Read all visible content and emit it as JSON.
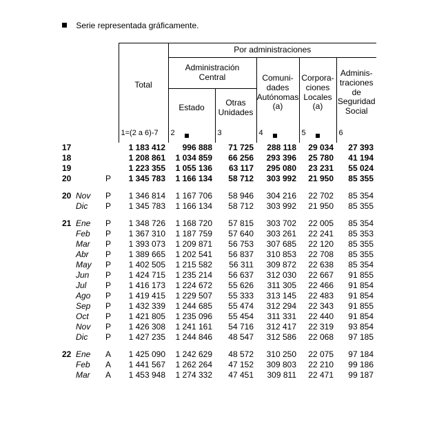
{
  "legend": "Serie representada gráficamente.",
  "header": {
    "total": "Total",
    "por_admin": "Por administraciones",
    "admin_central": "Administración\nCentral",
    "comunidades": "Comuni-\ndades\nAutónomas\n(a)",
    "corporaciones": "Corpora-\nciones\nLocales\n(a)",
    "seguridad": "Adminis-\ntraciones\nde\nSeguridad\nSocial",
    "estado": "Estado",
    "otras": "Otras\nUnidades"
  },
  "col_labels": [
    "1=(2 a 6)-7",
    "2",
    "3",
    "4",
    "5",
    "6"
  ],
  "col_markers": [
    false,
    true,
    false,
    true,
    true,
    false
  ],
  "groups": [
    {
      "rows": [
        {
          "year": "17",
          "month": "",
          "flag": "",
          "bold": true,
          "ital": false,
          "v": [
            "1 183 412",
            "996 888",
            "71 725",
            "288 118",
            "29 034",
            "27 393"
          ]
        },
        {
          "year": "18",
          "month": "",
          "flag": "",
          "bold": true,
          "ital": false,
          "v": [
            "1 208 861",
            "1 034 859",
            "66 256",
            "293 396",
            "25 780",
            "41 194"
          ]
        },
        {
          "year": "19",
          "month": "",
          "flag": "",
          "bold": true,
          "ital": false,
          "v": [
            "1 223 355",
            "1 055 136",
            "63 117",
            "295 080",
            "23 231",
            "55 024"
          ]
        },
        {
          "year": "20",
          "month": "",
          "flag": "P",
          "bold": true,
          "ital": false,
          "v": [
            "1 345 783",
            "1 166 134",
            "58 712",
            "303 992",
            "21 950",
            "85 355"
          ]
        }
      ]
    },
    {
      "rows": [
        {
          "year": "20",
          "month": "Nov",
          "flag": "P",
          "bold": false,
          "ital": true,
          "v": [
            "1 346 814",
            "1 167 706",
            "58 946",
            "304 216",
            "22 702",
            "85 354"
          ]
        },
        {
          "year": "",
          "month": "Dic",
          "flag": "P",
          "bold": false,
          "ital": true,
          "v": [
            "1 345 783",
            "1 166 134",
            "58 712",
            "303 992",
            "21 950",
            "85 355"
          ]
        }
      ]
    },
    {
      "rows": [
        {
          "year": "21",
          "month": "Ene",
          "flag": "P",
          "bold": false,
          "ital": true,
          "v": [
            "1 348 726",
            "1 168 720",
            "57 815",
            "303 702",
            "22 005",
            "85 354"
          ]
        },
        {
          "year": "",
          "month": "Feb",
          "flag": "P",
          "bold": false,
          "ital": true,
          "v": [
            "1 367 310",
            "1 187 759",
            "57 640",
            "303 261",
            "22 241",
            "85 353"
          ]
        },
        {
          "year": "",
          "month": "Mar",
          "flag": "P",
          "bold": false,
          "ital": true,
          "v": [
            "1 393 073",
            "1 209 871",
            "56 753",
            "307 685",
            "22 120",
            "85 355"
          ]
        },
        {
          "year": "",
          "month": "Abr",
          "flag": "P",
          "bold": false,
          "ital": true,
          "v": [
            "1 389 665",
            "1 202 541",
            "56 837",
            "310 853",
            "22 708",
            "85 355"
          ]
        },
        {
          "year": "",
          "month": "May",
          "flag": "P",
          "bold": false,
          "ital": true,
          "v": [
            "1 402 505",
            "1 215 582",
            "56 311",
            "309 872",
            "22 638",
            "85 354"
          ]
        },
        {
          "year": "",
          "month": "Jun",
          "flag": "P",
          "bold": false,
          "ital": true,
          "v": [
            "1 424 715",
            "1 235 214",
            "56 637",
            "312 030",
            "22 667",
            "91 855"
          ]
        },
        {
          "year": "",
          "month": "Jul",
          "flag": "P",
          "bold": false,
          "ital": true,
          "v": [
            "1 416 173",
            "1 224 672",
            "55 626",
            "311 305",
            "22 466",
            "91 854"
          ]
        },
        {
          "year": "",
          "month": "Ago",
          "flag": "P",
          "bold": false,
          "ital": true,
          "v": [
            "1 419 415",
            "1 229 507",
            "55 333",
            "313 145",
            "22 483",
            "91 854"
          ]
        },
        {
          "year": "",
          "month": "Sep",
          "flag": "P",
          "bold": false,
          "ital": true,
          "v": [
            "1 432 339",
            "1 244 685",
            "55 474",
            "312 294",
            "22 343",
            "91 855"
          ]
        },
        {
          "year": "",
          "month": "Oct",
          "flag": "P",
          "bold": false,
          "ital": true,
          "v": [
            "1 421 805",
            "1 235 096",
            "55 454",
            "311 331",
            "22 440",
            "91 854"
          ]
        },
        {
          "year": "",
          "month": "Nov",
          "flag": "P",
          "bold": false,
          "ital": true,
          "v": [
            "1 426 308",
            "1 241 161",
            "54 716",
            "312 417",
            "22 319",
            "93 854"
          ]
        },
        {
          "year": "",
          "month": "Dic",
          "flag": "P",
          "bold": false,
          "ital": true,
          "v": [
            "1 427 235",
            "1 244 846",
            "48 547",
            "312 586",
            "22 068",
            "97 185"
          ]
        }
      ]
    },
    {
      "rows": [
        {
          "year": "22",
          "month": "Ene",
          "flag": "A",
          "bold": false,
          "ital": true,
          "v": [
            "1 425 090",
            "1 242 629",
            "48 572",
            "310 250",
            "22 075",
            "97 184"
          ]
        },
        {
          "year": "",
          "month": "Feb",
          "flag": "A",
          "bold": false,
          "ital": true,
          "v": [
            "1 441 567",
            "1 262 264",
            "47 152",
            "309 803",
            "22 210",
            "99 186"
          ]
        },
        {
          "year": "",
          "month": "Mar",
          "flag": "A",
          "bold": false,
          "ital": true,
          "v": [
            "1 453 948",
            "1 274 332",
            "47 451",
            "309 811",
            "22 471",
            "99 187"
          ]
        }
      ]
    }
  ]
}
